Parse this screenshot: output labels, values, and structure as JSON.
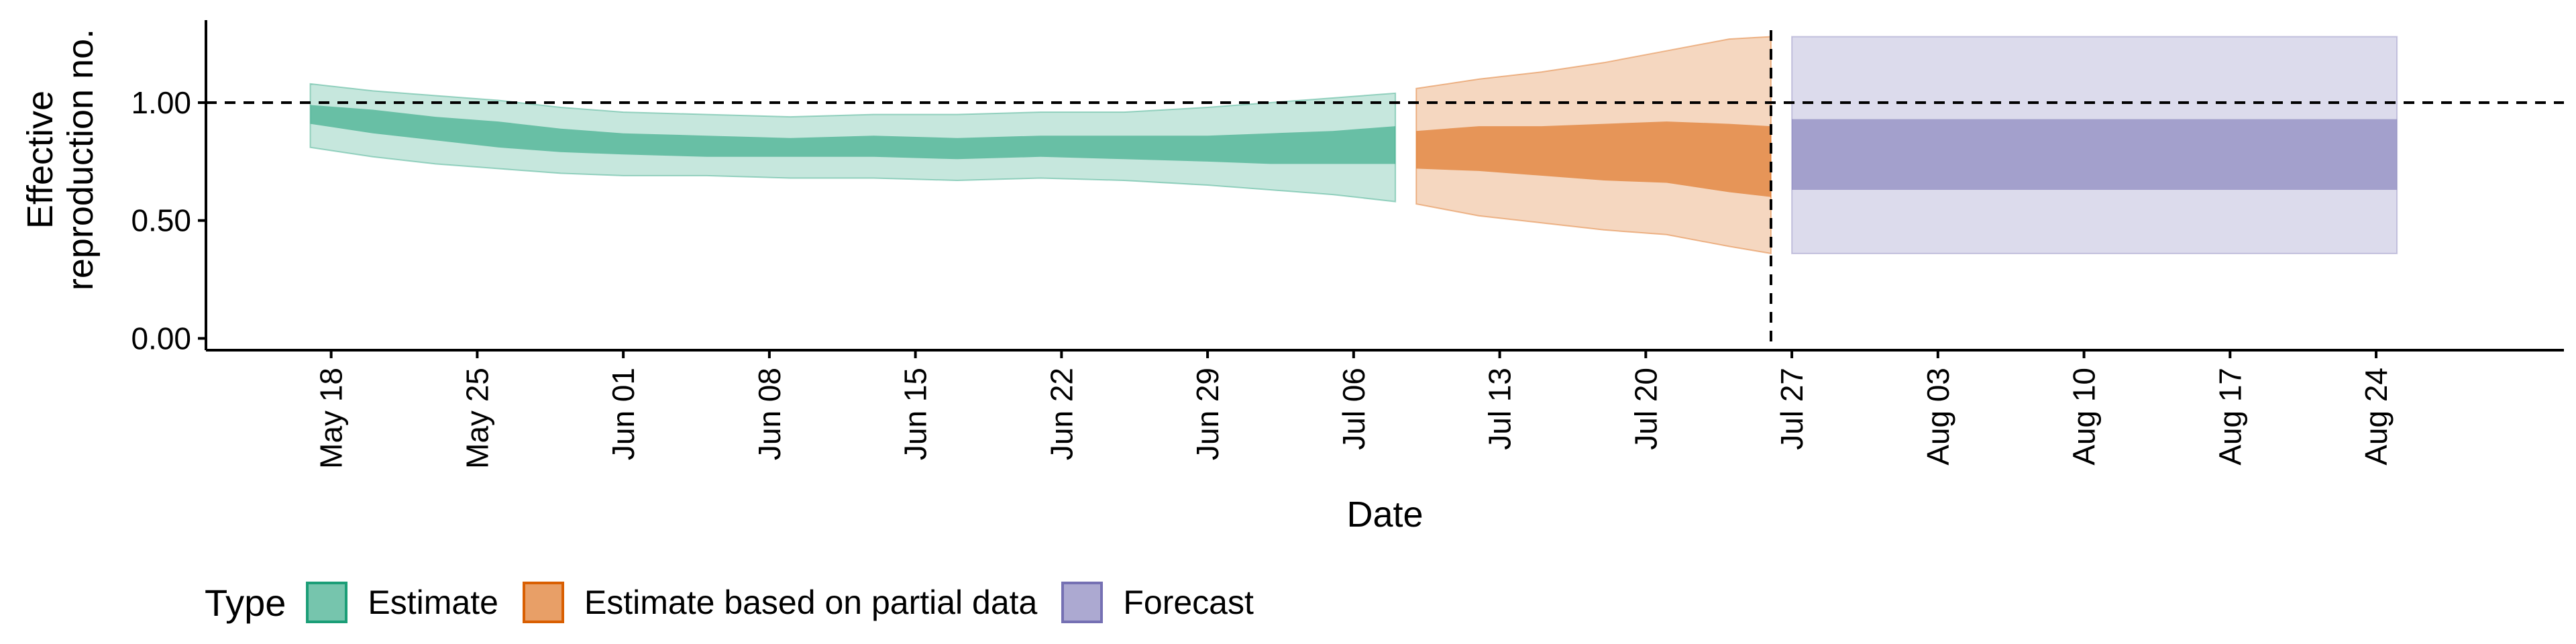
{
  "chart_data": {
    "type": "area",
    "xlabel": "Date",
    "ylabel_lines": [
      "Effective",
      "reproduction no."
    ],
    "x_ticks": [
      "May 18",
      "May 25",
      "Jun 01",
      "Jun 08",
      "Jun 15",
      "Jun 22",
      "Jun 29",
      "Jul 06",
      "Jul 13",
      "Jul 20",
      "Jul 27",
      "Aug 03",
      "Aug 10",
      "Aug 17",
      "Aug 24"
    ],
    "x_range": [
      "2020-05-12",
      "2020-09-02"
    ],
    "y_ticks": [
      "0.00",
      "0.50",
      "1.00"
    ],
    "ylim": [
      -0.05,
      1.35
    ],
    "reference_line_y": 1.0,
    "vertical_line_date": "2020-07-26",
    "grid": false,
    "legend_position": "bottom",
    "legend": {
      "title": "Type",
      "items": [
        {
          "label": "Estimate",
          "color": "#1b9e77"
        },
        {
          "label": "Estimate based on partial data",
          "color": "#d95f02"
        },
        {
          "label": "Forecast",
          "color": "#7570b3"
        }
      ]
    },
    "series": [
      {
        "name": "Estimate",
        "color": "#1b9e77",
        "points": [
          {
            "date": "2020-05-17",
            "lower90": 0.81,
            "lower50": 0.91,
            "upper50": 0.99,
            "upper90": 1.08
          },
          {
            "date": "2020-05-20",
            "lower90": 0.77,
            "lower50": 0.87,
            "upper50": 0.97,
            "upper90": 1.05
          },
          {
            "date": "2020-05-23",
            "lower90": 0.74,
            "lower50": 0.84,
            "upper50": 0.94,
            "upper90": 1.03
          },
          {
            "date": "2020-05-26",
            "lower90": 0.72,
            "lower50": 0.81,
            "upper50": 0.92,
            "upper90": 1.01
          },
          {
            "date": "2020-05-29",
            "lower90": 0.7,
            "lower50": 0.79,
            "upper50": 0.89,
            "upper90": 0.98
          },
          {
            "date": "2020-06-01",
            "lower90": 0.69,
            "lower50": 0.78,
            "upper50": 0.87,
            "upper90": 0.96
          },
          {
            "date": "2020-06-05",
            "lower90": 0.69,
            "lower50": 0.77,
            "upper50": 0.86,
            "upper90": 0.95
          },
          {
            "date": "2020-06-09",
            "lower90": 0.68,
            "lower50": 0.77,
            "upper50": 0.85,
            "upper90": 0.94
          },
          {
            "date": "2020-06-13",
            "lower90": 0.68,
            "lower50": 0.77,
            "upper50": 0.86,
            "upper90": 0.95
          },
          {
            "date": "2020-06-17",
            "lower90": 0.67,
            "lower50": 0.76,
            "upper50": 0.85,
            "upper90": 0.95
          },
          {
            "date": "2020-06-21",
            "lower90": 0.68,
            "lower50": 0.77,
            "upper50": 0.86,
            "upper90": 0.96
          },
          {
            "date": "2020-06-25",
            "lower90": 0.67,
            "lower50": 0.76,
            "upper50": 0.86,
            "upper90": 0.96
          },
          {
            "date": "2020-06-29",
            "lower90": 0.65,
            "lower50": 0.75,
            "upper50": 0.86,
            "upper90": 0.98
          },
          {
            "date": "2020-07-02",
            "lower90": 0.63,
            "lower50": 0.74,
            "upper50": 0.87,
            "upper90": 1.0
          },
          {
            "date": "2020-07-05",
            "lower90": 0.61,
            "lower50": 0.74,
            "upper50": 0.88,
            "upper90": 1.02
          },
          {
            "date": "2020-07-08",
            "lower90": 0.58,
            "lower50": 0.74,
            "upper50": 0.9,
            "upper90": 1.04
          }
        ]
      },
      {
        "name": "Estimate based on partial data",
        "color": "#d95f02",
        "points": [
          {
            "date": "2020-07-09",
            "lower90": 0.57,
            "lower50": 0.72,
            "upper50": 0.88,
            "upper90": 1.06
          },
          {
            "date": "2020-07-12",
            "lower90": 0.52,
            "lower50": 0.71,
            "upper50": 0.9,
            "upper90": 1.1
          },
          {
            "date": "2020-07-15",
            "lower90": 0.49,
            "lower50": 0.69,
            "upper50": 0.9,
            "upper90": 1.13
          },
          {
            "date": "2020-07-18",
            "lower90": 0.46,
            "lower50": 0.67,
            "upper50": 0.91,
            "upper90": 1.17
          },
          {
            "date": "2020-07-21",
            "lower90": 0.44,
            "lower50": 0.66,
            "upper50": 0.92,
            "upper90": 1.22
          },
          {
            "date": "2020-07-24",
            "lower90": 0.39,
            "lower50": 0.62,
            "upper50": 0.91,
            "upper90": 1.27
          },
          {
            "date": "2020-07-26",
            "lower90": 0.36,
            "lower50": 0.6,
            "upper50": 0.9,
            "upper90": 1.28
          }
        ]
      },
      {
        "name": "Forecast",
        "color": "#7570b3",
        "points": [
          {
            "date": "2020-07-27",
            "lower90": 0.36,
            "lower50": 0.63,
            "upper50": 0.93,
            "upper90": 1.28
          },
          {
            "date": "2020-08-25",
            "lower90": 0.36,
            "lower50": 0.63,
            "upper50": 0.93,
            "upper90": 1.28
          }
        ]
      }
    ]
  }
}
